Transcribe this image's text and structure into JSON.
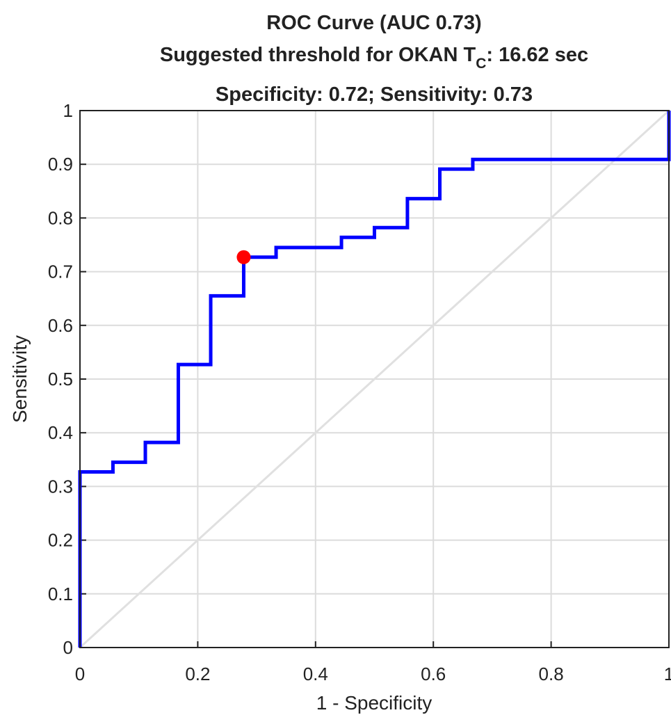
{
  "chart_data": {
    "type": "line",
    "title": [
      "ROC Curve (AUC 0.73)",
      [
        "Suggested threshold for OKAN T",
        "C",
        ": 16.62 sec"
      ],
      "Specificity: 0.72; Sensitivity: 0.73"
    ],
    "xlabel": "1 - Specificity",
    "ylabel": "Sensitivity",
    "xlim": [
      0,
      1
    ],
    "ylim": [
      0,
      1
    ],
    "xticks": [
      0,
      0.2,
      0.4,
      0.6,
      0.8,
      1
    ],
    "yticks": [
      0,
      0.1,
      0.2,
      0.3,
      0.4,
      0.5,
      0.6,
      0.7,
      0.8,
      0.9,
      1
    ],
    "grid": true,
    "diagonal": {
      "x": [
        0,
        1
      ],
      "y": [
        0,
        1
      ],
      "color": "#e0e0e0"
    },
    "curve": {
      "color": "#0000ff",
      "x": [
        0,
        0,
        0.056,
        0.056,
        0.111,
        0.111,
        0.167,
        0.167,
        0.222,
        0.222,
        0.278,
        0.278,
        0.333,
        0.333,
        0.444,
        0.444,
        0.5,
        0.5,
        0.556,
        0.556,
        0.611,
        0.611,
        0.667,
        0.667,
        1,
        1
      ],
      "y": [
        0,
        0.327,
        0.327,
        0.345,
        0.345,
        0.382,
        0.382,
        0.527,
        0.527,
        0.655,
        0.655,
        0.727,
        0.727,
        0.745,
        0.745,
        0.764,
        0.764,
        0.782,
        0.782,
        0.836,
        0.836,
        0.891,
        0.891,
        0.909,
        0.909,
        1
      ]
    },
    "point": {
      "x": 0.278,
      "y": 0.727,
      "color": "#ff0000"
    }
  }
}
